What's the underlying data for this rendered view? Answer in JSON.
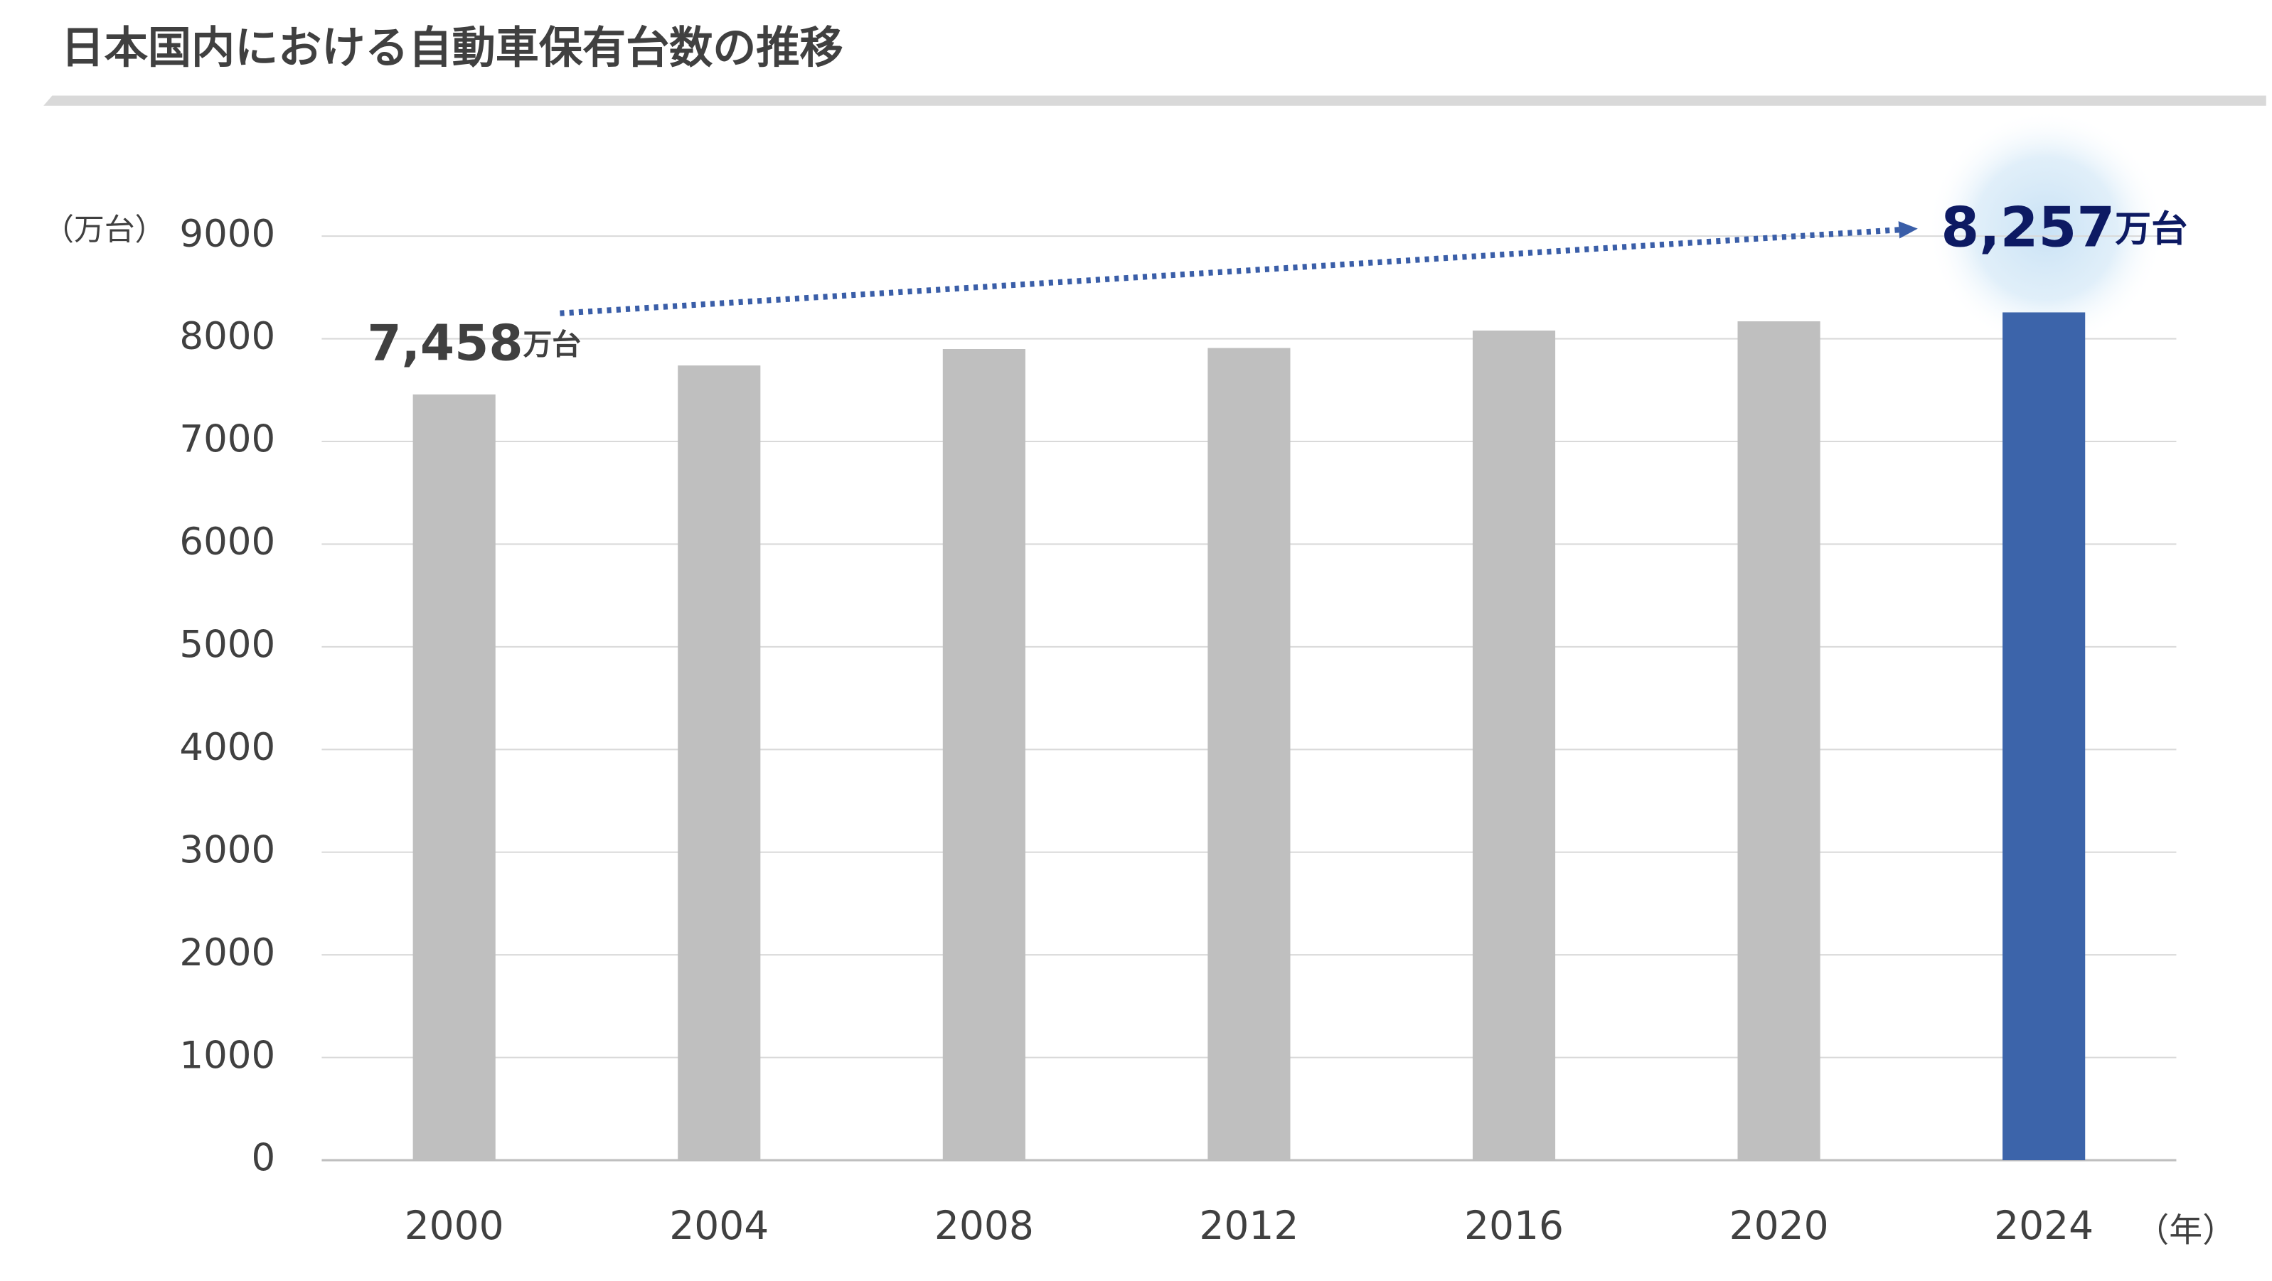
{
  "chart_data": {
    "type": "bar",
    "title": "日本国内における自動車保有台数の推移",
    "y_unit_label": "（万台）",
    "x_unit_label": "（年）",
    "categories": [
      "2000",
      "2004",
      "2008",
      "2012",
      "2016",
      "2020",
      "2024"
    ],
    "values": [
      7458,
      7740,
      7900,
      7910,
      8080,
      8170,
      8257
    ],
    "value_labels": [
      "7,458",
      null,
      null,
      null,
      null,
      null,
      "8,257"
    ],
    "value_label_unit": "万台",
    "colors": [
      "#bfbfbf",
      "#bfbfbf",
      "#bfbfbf",
      "#bfbfbf",
      "#bfbfbf",
      "#bfbfbf",
      "#3c64aa"
    ],
    "ylim": [
      0,
      9000
    ],
    "yticks": [
      0,
      1000,
      2000,
      3000,
      4000,
      5000,
      6000,
      7000,
      8000,
      9000
    ],
    "grid": true
  }
}
